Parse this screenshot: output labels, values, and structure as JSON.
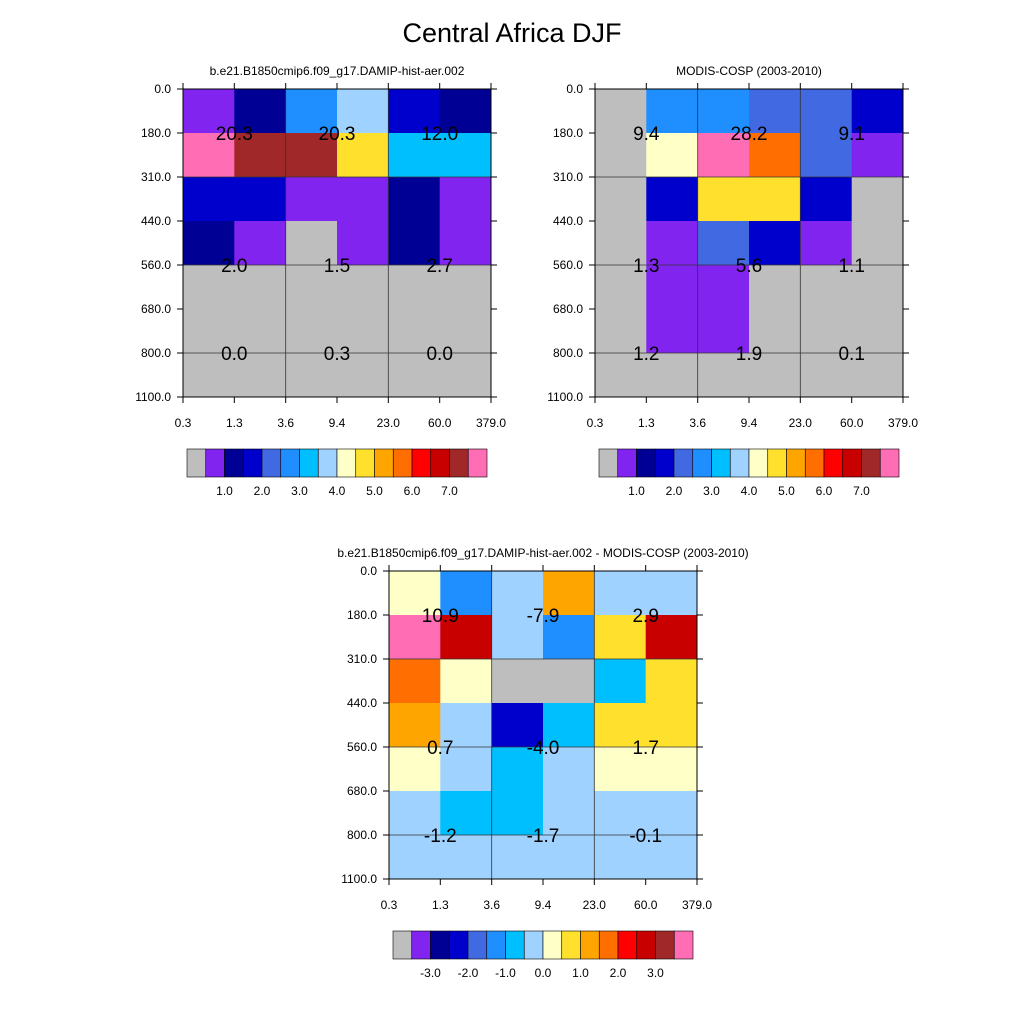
{
  "title": "Central Africa DJF",
  "chart_data": [
    {
      "type": "heatmap",
      "title": "b.e21.B1850cmip6.f09_g17.DAMIP-hist-aer.002",
      "xlabel": "",
      "ylabel": "",
      "x_ticks": [
        "0.3",
        "1.3",
        "3.6",
        "9.4",
        "23.0",
        "60.0",
        "379.0"
      ],
      "y_ticks": [
        "0.0",
        "180.0",
        "310.0",
        "440.0",
        "560.0",
        "680.0",
        "800.0",
        "1100.0"
      ],
      "cell_colors": [
        [
          "#8224f0",
          "#000095",
          "#1f8fff",
          "#a0d2ff",
          "#0000cd",
          "#000095"
        ],
        [
          "#ff6eb4",
          "#a02828",
          "#a02828",
          "#ffe12d",
          "#00bfff",
          "#00bfff"
        ],
        [
          "#0000cd",
          "#0000cd",
          "#8224f0",
          "#8224f0",
          "#000095",
          "#8224f0"
        ],
        [
          "#000095",
          "#8224f0",
          "#bebebe",
          "#8224f0",
          "#000095",
          "#8224f0"
        ],
        [
          "#bebebe",
          "#bebebe",
          "#bebebe",
          "#bebebe",
          "#bebebe",
          "#bebebe"
        ],
        [
          "#bebebe",
          "#bebebe",
          "#bebebe",
          "#bebebe",
          "#bebebe",
          "#bebebe"
        ],
        [
          "#bebebe",
          "#bebebe",
          "#bebebe",
          "#bebebe",
          "#bebebe",
          "#bebebe"
        ]
      ],
      "annotations": [
        {
          "text": "20.3",
          "col": 1,
          "row": 1
        },
        {
          "text": "20.3",
          "col": 3,
          "row": 1
        },
        {
          "text": "12.0",
          "col": 5,
          "row": 1
        },
        {
          "text": "2.0",
          "col": 1,
          "row": 4
        },
        {
          "text": "1.5",
          "col": 3,
          "row": 4
        },
        {
          "text": "2.7",
          "col": 5,
          "row": 4
        },
        {
          "text": "0.0",
          "col": 1,
          "row": 6
        },
        {
          "text": "0.3",
          "col": 3,
          "row": 6
        },
        {
          "text": "0.0",
          "col": 5,
          "row": 6
        }
      ],
      "colorbar": {
        "colors": [
          "#bebebe",
          "#8224f0",
          "#000095",
          "#0000cd",
          "#4169e1",
          "#1f8fff",
          "#00bfff",
          "#a0d2ff",
          "#ffffc8",
          "#ffe12d",
          "#ffa500",
          "#ff6e00",
          "#ff0000",
          "#c80000",
          "#a02828",
          "#ff6eb4"
        ],
        "labels": [
          "1.0",
          "2.0",
          "3.0",
          "4.0",
          "5.0",
          "6.0",
          "7.0"
        ]
      }
    },
    {
      "type": "heatmap",
      "title": "MODIS-COSP (2003-2010)",
      "xlabel": "",
      "ylabel": "",
      "x_ticks": [
        "0.3",
        "1.3",
        "3.6",
        "9.4",
        "23.0",
        "60.0",
        "379.0"
      ],
      "y_ticks": [
        "0.0",
        "180.0",
        "310.0",
        "440.0",
        "560.0",
        "680.0",
        "800.0",
        "1100.0"
      ],
      "cell_colors": [
        [
          "#bebebe",
          "#1f8fff",
          "#1f8fff",
          "#4169e1",
          "#4169e1",
          "#0000cd"
        ],
        [
          "#bebebe",
          "#ffffc8",
          "#ff6eb4",
          "#ff6e00",
          "#4169e1",
          "#8224f0"
        ],
        [
          "#bebebe",
          "#0000cd",
          "#ffe12d",
          "#ffe12d",
          "#0000cd",
          "#bebebe"
        ],
        [
          "#bebebe",
          "#8224f0",
          "#4169e1",
          "#0000cd",
          "#8224f0",
          "#bebebe"
        ],
        [
          "#bebebe",
          "#8224f0",
          "#8224f0",
          "#bebebe",
          "#bebebe",
          "#bebebe"
        ],
        [
          "#bebebe",
          "#8224f0",
          "#8224f0",
          "#bebebe",
          "#bebebe",
          "#bebebe"
        ],
        [
          "#bebebe",
          "#bebebe",
          "#bebebe",
          "#bebebe",
          "#bebebe",
          "#bebebe"
        ]
      ],
      "annotations": [
        {
          "text": "9.4",
          "col": 1,
          "row": 1
        },
        {
          "text": "28.2",
          "col": 3,
          "row": 1
        },
        {
          "text": "9.1",
          "col": 5,
          "row": 1
        },
        {
          "text": "1.3",
          "col": 1,
          "row": 4
        },
        {
          "text": "5.6",
          "col": 3,
          "row": 4
        },
        {
          "text": "1.1",
          "col": 5,
          "row": 4
        },
        {
          "text": "1.2",
          "col": 1,
          "row": 6
        },
        {
          "text": "1.9",
          "col": 3,
          "row": 6
        },
        {
          "text": "0.1",
          "col": 5,
          "row": 6
        }
      ],
      "colorbar": {
        "colors": [
          "#bebebe",
          "#8224f0",
          "#000095",
          "#0000cd",
          "#4169e1",
          "#1f8fff",
          "#00bfff",
          "#a0d2ff",
          "#ffffc8",
          "#ffe12d",
          "#ffa500",
          "#ff6e00",
          "#ff0000",
          "#c80000",
          "#a02828",
          "#ff6eb4"
        ],
        "labels": [
          "1.0",
          "2.0",
          "3.0",
          "4.0",
          "5.0",
          "6.0",
          "7.0"
        ]
      }
    },
    {
      "type": "heatmap",
      "title": "b.e21.B1850cmip6.f09_g17.DAMIP-hist-aer.002 - MODIS-COSP (2003-2010)",
      "xlabel": "",
      "ylabel": "",
      "x_ticks": [
        "0.3",
        "1.3",
        "3.6",
        "9.4",
        "23.0",
        "60.0",
        "379.0"
      ],
      "y_ticks": [
        "0.0",
        "180.0",
        "310.0",
        "440.0",
        "560.0",
        "680.0",
        "800.0",
        "1100.0"
      ],
      "cell_colors": [
        [
          "#ffffc8",
          "#1f8fff",
          "#a0d2ff",
          "#ffa500",
          "#a0d2ff",
          "#a0d2ff"
        ],
        [
          "#ff6eb4",
          "#c80000",
          "#a0d2ff",
          "#1f8fff",
          "#ffe12d",
          "#c80000"
        ],
        [
          "#ff6e00",
          "#ffffc8",
          "#bebebe",
          "#bebebe",
          "#00bfff",
          "#ffe12d"
        ],
        [
          "#ffa500",
          "#a0d2ff",
          "#0000cd",
          "#00bfff",
          "#ffe12d",
          "#ffe12d"
        ],
        [
          "#ffffc8",
          "#a0d2ff",
          "#00bfff",
          "#a0d2ff",
          "#ffffc8",
          "#ffffc8"
        ],
        [
          "#a0d2ff",
          "#00bfff",
          "#00bfff",
          "#a0d2ff",
          "#a0d2ff",
          "#a0d2ff"
        ],
        [
          "#a0d2ff",
          "#a0d2ff",
          "#a0d2ff",
          "#a0d2ff",
          "#a0d2ff",
          "#a0d2ff"
        ]
      ],
      "annotations": [
        {
          "text": "10.9",
          "col": 1,
          "row": 1
        },
        {
          "text": "-7.9",
          "col": 3,
          "row": 1
        },
        {
          "text": "2.9",
          "col": 5,
          "row": 1
        },
        {
          "text": "0.7",
          "col": 1,
          "row": 4
        },
        {
          "text": "-4.0",
          "col": 3,
          "row": 4
        },
        {
          "text": "1.7",
          "col": 5,
          "row": 4
        },
        {
          "text": "-1.2",
          "col": 1,
          "row": 6
        },
        {
          "text": "-1.7",
          "col": 3,
          "row": 6
        },
        {
          "text": "-0.1",
          "col": 5,
          "row": 6
        }
      ],
      "colorbar": {
        "colors": [
          "#bebebe",
          "#8224f0",
          "#000095",
          "#0000cd",
          "#4169e1",
          "#1f8fff",
          "#00bfff",
          "#a0d2ff",
          "#ffffc8",
          "#ffe12d",
          "#ffa500",
          "#ff6e00",
          "#ff0000",
          "#c80000",
          "#a02828",
          "#ff6eb4"
        ],
        "labels": [
          "-3.0",
          "-2.0",
          "-1.0",
          "0.0",
          "1.0",
          "2.0",
          "3.0"
        ]
      }
    }
  ]
}
